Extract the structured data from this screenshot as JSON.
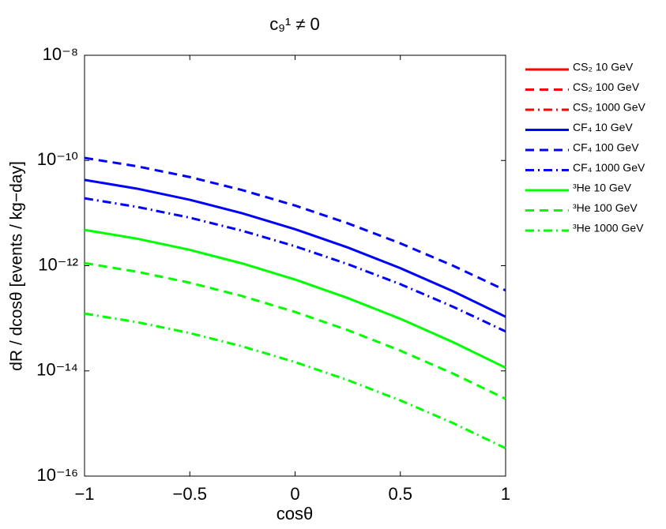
{
  "chart_data": {
    "type": "line",
    "title": "c₉¹ ≠ 0",
    "x_label": "cosθ",
    "y_label": "dR / dcosθ  [events / kg−day]",
    "log_y": true,
    "x": [
      -1,
      -0.75,
      -0.5,
      -0.25,
      0,
      0.25,
      0.5,
      0.75,
      1
    ],
    "xlim": [
      -1,
      1
    ],
    "xticks": [
      {
        "value": -1,
        "label": "−1"
      },
      {
        "value": -0.5,
        "label": "−0.5"
      },
      0,
      0.5,
      1
    ],
    "ylim": [
      1e-16,
      1e-08
    ],
    "yticks": [
      {
        "value": 1e-16,
        "label": "10⁻¹⁶"
      },
      {
        "value": 1e-14,
        "label": "10⁻¹⁴"
      },
      {
        "value": 1e-12,
        "label": "10⁻¹²"
      },
      {
        "value": 1e-10,
        "label": "10⁻¹⁰"
      },
      {
        "value": 1e-08,
        "label": "10⁻⁸"
      }
    ],
    "legend": "outside-right",
    "series": [
      {
        "name": "CS₂ 10 GeV",
        "color": "#ff0000",
        "linestyle": "solid",
        "values": [
          null,
          null,
          null,
          null,
          null,
          null,
          null,
          null,
          null
        ]
      },
      {
        "name": "CS₂ 100 GeV",
        "color": "#ff0000",
        "linestyle": "dashed",
        "values": [
          null,
          null,
          null,
          null,
          null,
          null,
          null,
          null,
          null
        ]
      },
      {
        "name": "CS₂ 1000 GeV",
        "color": "#ff0000",
        "linestyle": "dashdot",
        "values": [
          null,
          null,
          null,
          null,
          null,
          null,
          null,
          null,
          null
        ]
      },
      {
        "name": "CF₄ 10 GeV",
        "color": "#0000ff",
        "linestyle": "solid",
        "values": [
          4.27e-11,
          2.91e-11,
          1.79e-11,
          9.9e-12,
          4.94e-12,
          2.22e-12,
          8.97e-13,
          3.27e-13,
          1.07e-13
        ]
      },
      {
        "name": "CF₄ 100 GeV",
        "color": "#0000ff",
        "linestyle": "dashed",
        "values": [
          1.12e-10,
          7.74e-11,
          4.84e-11,
          2.73e-11,
          1.39e-11,
          6.4e-12,
          2.66e-12,
          1e-12,
          3.39e-13
        ]
      },
      {
        "name": "CF₄ 1000 GeV",
        "color": "#0000ff",
        "linestyle": "dashdot",
        "values": [
          1.91e-11,
          1.31e-11,
          8.18e-12,
          4.6e-12,
          2.34e-12,
          1.07e-12,
          4.45e-13,
          1.66e-13,
          5.62e-14
        ]
      },
      {
        "name": "³He 10 GeV",
        "color": "#00ff00",
        "linestyle": "solid",
        "values": [
          4.79e-12,
          3.26e-12,
          2e-12,
          1.1e-12,
          5.46e-13,
          2.43e-13,
          9.8e-14,
          3.53e-14,
          1.15e-14
        ]
      },
      {
        "name": "³He 100 GeV",
        "color": "#00ff00",
        "linestyle": "dashed",
        "values": [
          1.12e-12,
          7.67e-13,
          4.74e-13,
          2.64e-13,
          1.32e-13,
          5.97e-14,
          2.43e-14,
          8.91e-15,
          2.95e-15
        ]
      },
      {
        "name": "³He 1000 GeV",
        "color": "#00ff00",
        "linestyle": "dashdot",
        "values": [
          1.23e-13,
          8.45e-14,
          5.24e-14,
          2.92e-14,
          1.47e-14,
          6.7e-15,
          2.75e-15,
          1.02e-15,
          3.39e-16
        ]
      }
    ]
  }
}
